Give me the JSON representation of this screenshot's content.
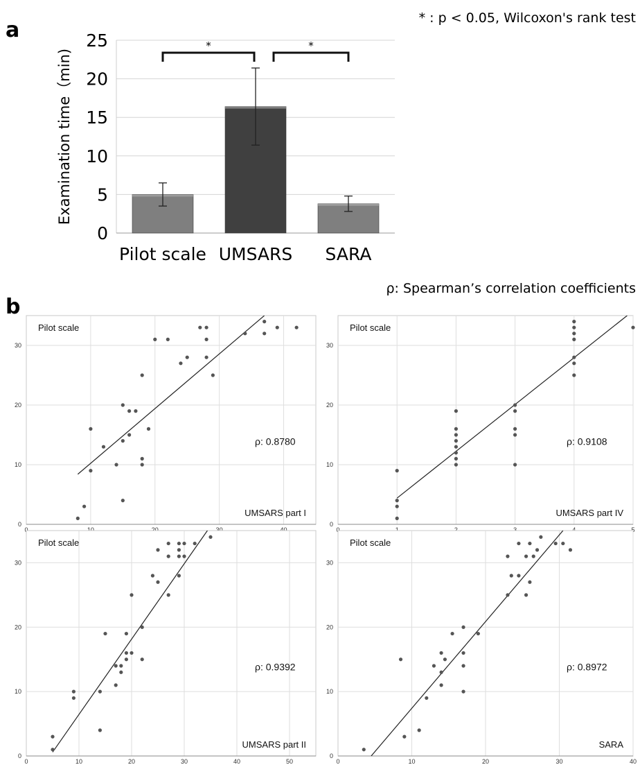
{
  "labels": {
    "panel_a": "a",
    "panel_b": "b"
  },
  "notes": {
    "wilcoxon": "* : p < 0.05, Wilcoxon's rank test",
    "spearman": "ρ: Spearman’s correlation coefficients"
  },
  "chart_data": [
    {
      "type": "bar",
      "panel": "a",
      "ylabel": "Examination time（min)",
      "categories": [
        "Pilot scale",
        "UMSARS",
        "SARA"
      ],
      "values": [
        5.0,
        16.4,
        3.8
      ],
      "error": [
        1.5,
        5.0,
        1.0
      ],
      "colors": [
        "#7f7f7f",
        "#404040",
        "#7f7f7f"
      ],
      "ylim": [
        0,
        25
      ],
      "yticks": [
        0,
        5,
        10,
        15,
        20,
        25
      ],
      "significance": [
        {
          "from": "Pilot scale",
          "to": "UMSARS",
          "label": "*"
        },
        {
          "from": "UMSARS",
          "to": "SARA",
          "label": "*"
        }
      ],
      "grid": true
    },
    {
      "type": "scatter",
      "panel": "b",
      "ylabel": "Pilot scale",
      "xlabel": "UMSARS part I",
      "rho": "ρ: 0.8780",
      "xlim": [
        0,
        45
      ],
      "ylim": [
        0,
        35
      ],
      "xticks": [
        0,
        10,
        20,
        30,
        40
      ],
      "yticks": [
        0,
        10,
        20,
        30
      ],
      "trend": [
        [
          8,
          8.4
        ],
        [
          37,
          35
        ]
      ],
      "points": [
        [
          8,
          1
        ],
        [
          9,
          3
        ],
        [
          10,
          9
        ],
        [
          10,
          16
        ],
        [
          12,
          13
        ],
        [
          14,
          10
        ],
        [
          15,
          4
        ],
        [
          15,
          14
        ],
        [
          15,
          20
        ],
        [
          16,
          15
        ],
        [
          16,
          19
        ],
        [
          17,
          19
        ],
        [
          18,
          10
        ],
        [
          18,
          11
        ],
        [
          18,
          25
        ],
        [
          19,
          16
        ],
        [
          20,
          31
        ],
        [
          22,
          31
        ],
        [
          24,
          27
        ],
        [
          25,
          28
        ],
        [
          27,
          33
        ],
        [
          28,
          28
        ],
        [
          28,
          31
        ],
        [
          28,
          33
        ],
        [
          29,
          25
        ],
        [
          34,
          32
        ],
        [
          37,
          32
        ],
        [
          37,
          34
        ],
        [
          39,
          33
        ],
        [
          42,
          33
        ]
      ],
      "grid": true
    },
    {
      "type": "scatter",
      "panel": "b",
      "ylabel": "Pilot scale",
      "xlabel": "UMSARS part IV",
      "rho": "ρ: 0.9108",
      "xlim": [
        0,
        5
      ],
      "ylim": [
        0,
        35
      ],
      "xticks": [
        0,
        1,
        2,
        3,
        4,
        5
      ],
      "yticks": [
        0,
        10,
        20,
        30
      ],
      "trend": [
        [
          1,
          4.4
        ],
        [
          4.9,
          35
        ]
      ],
      "points": [
        [
          1,
          1
        ],
        [
          1,
          3
        ],
        [
          1,
          4
        ],
        [
          1,
          9
        ],
        [
          2,
          10
        ],
        [
          2,
          11
        ],
        [
          2,
          12
        ],
        [
          2,
          13
        ],
        [
          2,
          14
        ],
        [
          2,
          15
        ],
        [
          2,
          16
        ],
        [
          2,
          19
        ],
        [
          3,
          10
        ],
        [
          3,
          15
        ],
        [
          3,
          16
        ],
        [
          3,
          19
        ],
        [
          3,
          20
        ],
        [
          4,
          25
        ],
        [
          4,
          27
        ],
        [
          4,
          28
        ],
        [
          4,
          31
        ],
        [
          4,
          32
        ],
        [
          4,
          33
        ],
        [
          4,
          34
        ],
        [
          5,
          33
        ]
      ],
      "grid": true
    },
    {
      "type": "scatter",
      "panel": "b",
      "ylabel": "Pilot scale",
      "xlabel": "UMSARS part II",
      "rho": "ρ: 0.9392",
      "xlim": [
        0,
        55
      ],
      "ylim": [
        0,
        35
      ],
      "xticks": [
        0,
        10,
        20,
        30,
        40,
        50
      ],
      "yticks": [
        0,
        10,
        20,
        30
      ],
      "trend": [
        [
          5,
          0.6
        ],
        [
          34.4,
          35
        ]
      ],
      "points": [
        [
          5,
          1
        ],
        [
          5,
          3
        ],
        [
          9,
          9
        ],
        [
          9,
          10
        ],
        [
          14,
          4
        ],
        [
          14,
          10
        ],
        [
          15,
          19
        ],
        [
          17,
          11
        ],
        [
          17,
          14
        ],
        [
          18,
          13
        ],
        [
          18,
          14
        ],
        [
          19,
          15
        ],
        [
          19,
          16
        ],
        [
          19,
          19
        ],
        [
          20,
          16
        ],
        [
          20,
          25
        ],
        [
          22,
          15
        ],
        [
          22,
          20
        ],
        [
          24,
          28
        ],
        [
          25,
          27
        ],
        [
          25,
          32
        ],
        [
          27,
          25
        ],
        [
          27,
          31
        ],
        [
          27,
          33
        ],
        [
          29,
          28
        ],
        [
          29,
          31
        ],
        [
          29,
          32
        ],
        [
          29,
          33
        ],
        [
          30,
          31
        ],
        [
          30,
          33
        ],
        [
          32,
          33
        ],
        [
          35,
          34
        ]
      ],
      "grid": true
    },
    {
      "type": "scatter",
      "panel": "b",
      "ylabel": "Pilot scale",
      "xlabel": "SARA",
      "rho": "ρ: 0.8972",
      "xlim": [
        0,
        40
      ],
      "ylim": [
        0,
        35
      ],
      "xticks": [
        0,
        10,
        20,
        30,
        40
      ],
      "yticks": [
        0,
        10,
        20,
        30
      ],
      "trend": [
        [
          4.5,
          0
        ],
        [
          30.5,
          35
        ]
      ],
      "points": [
        [
          3.5,
          1
        ],
        [
          8.5,
          15
        ],
        [
          9,
          3
        ],
        [
          11,
          4
        ],
        [
          12,
          9
        ],
        [
          13,
          14
        ],
        [
          14,
          11
        ],
        [
          14,
          13
        ],
        [
          14,
          16
        ],
        [
          14.5,
          15
        ],
        [
          15.5,
          19
        ],
        [
          17,
          10
        ],
        [
          17,
          14
        ],
        [
          17,
          16
        ],
        [
          17,
          20
        ],
        [
          19,
          19
        ],
        [
          23,
          25
        ],
        [
          23,
          31
        ],
        [
          23.5,
          28
        ],
        [
          24.5,
          28
        ],
        [
          24.5,
          33
        ],
        [
          25.5,
          25
        ],
        [
          25.5,
          31
        ],
        [
          26,
          27
        ],
        [
          26,
          33
        ],
        [
          26.5,
          31
        ],
        [
          27,
          32
        ],
        [
          27.5,
          34
        ],
        [
          29.5,
          33
        ],
        [
          30.5,
          33
        ],
        [
          31.5,
          32
        ]
      ],
      "grid": true
    }
  ]
}
